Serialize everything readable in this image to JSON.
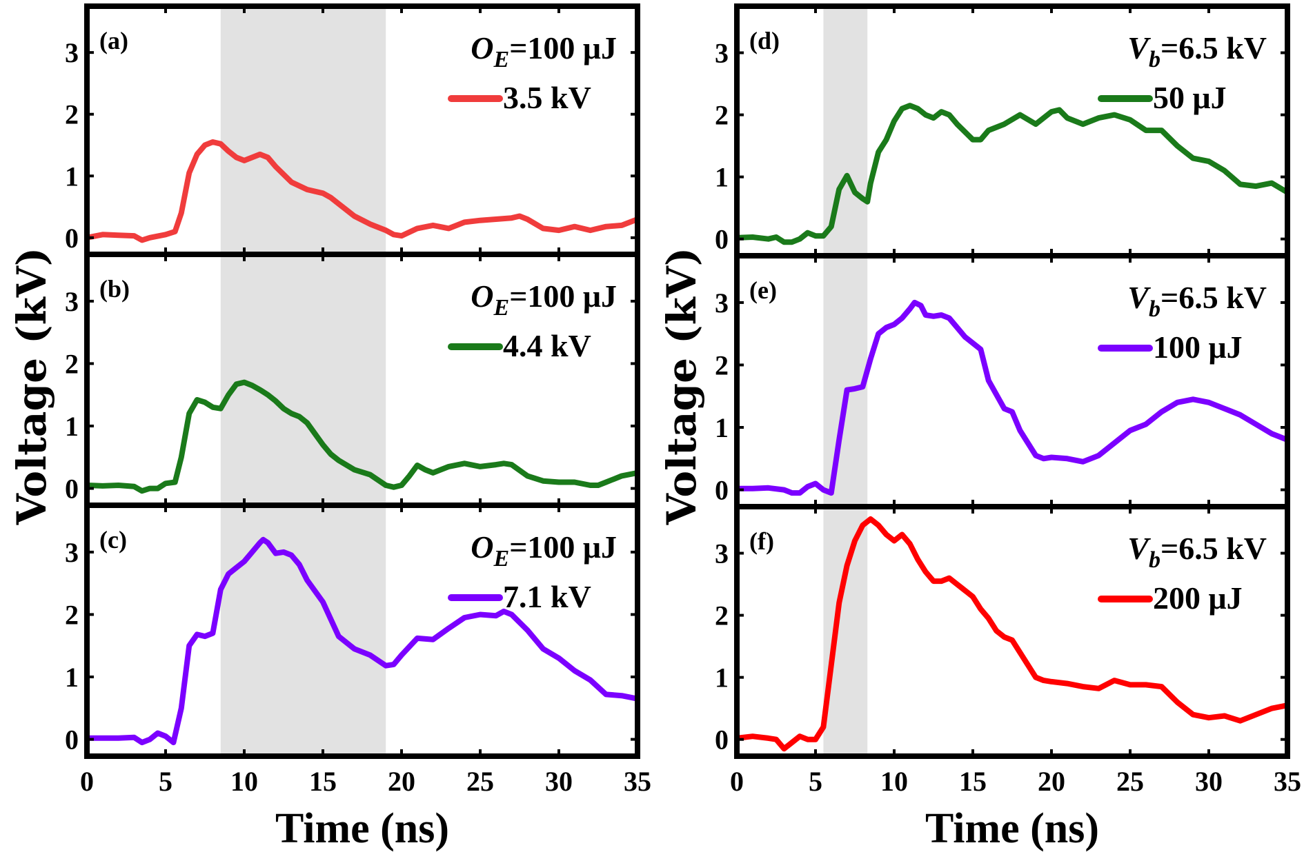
{
  "chart_data": [
    {
      "type": "line",
      "panel": "(a)",
      "annotation": {
        "symbol": "O",
        "subscript": "E",
        "rest": "=100 μJ"
      },
      "xlabel": "Time (ns)",
      "ylabel": "Voltage (kV)",
      "xlim": [
        0,
        35
      ],
      "ylim": [
        -0.27,
        3.75
      ],
      "xticks": [
        "0",
        "5",
        "10",
        "15",
        "20",
        "25",
        "30",
        "35"
      ],
      "yticks": [
        "0",
        "1",
        "2",
        "3"
      ],
      "shaded_region": [
        8.5,
        19
      ],
      "series": [
        {
          "name": "3.5 kV",
          "color": "#f03c3c",
          "x": [
            0,
            1,
            2,
            3,
            3.5,
            4,
            5,
            5.6,
            6,
            6.5,
            7,
            7.5,
            8,
            8.5,
            9,
            9.5,
            10,
            10.5,
            11,
            11.5,
            12,
            13,
            14,
            15,
            15.5,
            16,
            17,
            18,
            19,
            19.5,
            20,
            21,
            22,
            23,
            24,
            25,
            26,
            27,
            27.5,
            28,
            29,
            30,
            31,
            32,
            33,
            34,
            35
          ],
          "y": [
            0,
            0.05,
            0.04,
            0.03,
            -0.04,
            0,
            0.05,
            0.1,
            0.4,
            1.05,
            1.35,
            1.5,
            1.55,
            1.52,
            1.4,
            1.3,
            1.25,
            1.3,
            1.35,
            1.3,
            1.15,
            0.9,
            0.78,
            0.72,
            0.65,
            0.55,
            0.35,
            0.22,
            0.12,
            0.05,
            0.03,
            0.15,
            0.2,
            0.15,
            0.25,
            0.28,
            0.3,
            0.32,
            0.35,
            0.3,
            0.15,
            0.12,
            0.18,
            0.12,
            0.18,
            0.2,
            0.3
          ]
        }
      ]
    },
    {
      "type": "line",
      "panel": "(b)",
      "annotation": {
        "symbol": "O",
        "subscript": "E",
        "rest": "=100 μJ"
      },
      "xlabel": "Time (ns)",
      "ylabel": "Voltage (kV)",
      "xlim": [
        0,
        35
      ],
      "ylim": [
        -0.27,
        3.75
      ],
      "xticks": [
        "0",
        "5",
        "10",
        "15",
        "20",
        "25",
        "30",
        "35"
      ],
      "yticks": [
        "0",
        "1",
        "2",
        "3"
      ],
      "shaded_region": [
        8.5,
        19
      ],
      "series": [
        {
          "name": "4.4 kV",
          "color": "#1a7a1a",
          "x": [
            0,
            1,
            2,
            3,
            3.5,
            4,
            4.5,
            5,
            5.6,
            6,
            6.5,
            7,
            7.5,
            8,
            8.5,
            9,
            9.5,
            10,
            10.5,
            11,
            11.5,
            12,
            12.5,
            13,
            13.5,
            14,
            15,
            15.5,
            16,
            17,
            18,
            19,
            19.5,
            20,
            20.5,
            21,
            21.5,
            22,
            23,
            24,
            25,
            26,
            26.5,
            27,
            28,
            29,
            30,
            31,
            32,
            32.5,
            33,
            34,
            35
          ],
          "y": [
            0.05,
            0.04,
            0.05,
            0.03,
            -0.04,
            0,
            0,
            0.08,
            0.1,
            0.5,
            1.2,
            1.42,
            1.38,
            1.3,
            1.28,
            1.5,
            1.67,
            1.7,
            1.65,
            1.58,
            1.5,
            1.4,
            1.28,
            1.2,
            1.15,
            1.05,
            0.7,
            0.55,
            0.45,
            0.3,
            0.22,
            0.05,
            0.02,
            0.05,
            0.2,
            0.37,
            0.3,
            0.25,
            0.35,
            0.4,
            0.35,
            0.38,
            0.4,
            0.38,
            0.2,
            0.12,
            0.1,
            0.1,
            0.05,
            0.05,
            0.1,
            0.2,
            0.25
          ]
        }
      ]
    },
    {
      "type": "line",
      "panel": "(c)",
      "annotation": {
        "symbol": "O",
        "subscript": "E",
        "rest": "=100 μJ"
      },
      "xlabel": "Time (ns)",
      "ylabel": "Voltage (kV)",
      "xlim": [
        0,
        35
      ],
      "ylim": [
        -0.27,
        3.75
      ],
      "xticks": [
        "0",
        "5",
        "10",
        "15",
        "20",
        "25",
        "30",
        "35"
      ],
      "yticks": [
        "0",
        "1",
        "2",
        "3"
      ],
      "shaded_region": [
        8.5,
        19
      ],
      "series": [
        {
          "name": "7.1 kV",
          "color": "#7b00ff",
          "x": [
            0,
            1,
            2,
            3,
            3.5,
            4,
            4.5,
            5,
            5.5,
            6,
            6.5,
            7,
            7.5,
            8,
            8.5,
            9,
            9.5,
            10,
            10.5,
            11,
            11.2,
            11.5,
            12,
            12.5,
            13,
            13.5,
            14,
            15,
            16,
            17,
            18,
            19,
            19.5,
            20,
            21,
            22,
            23,
            24,
            25,
            26,
            26.5,
            27,
            28,
            29,
            30,
            31,
            32,
            33,
            34,
            35
          ],
          "y": [
            0.02,
            0.02,
            0.02,
            0.03,
            -0.05,
            0,
            0.1,
            0.05,
            -0.05,
            0.5,
            1.5,
            1.68,
            1.65,
            1.7,
            2.4,
            2.65,
            2.75,
            2.85,
            3.0,
            3.15,
            3.2,
            3.15,
            2.98,
            3.0,
            2.95,
            2.8,
            2.55,
            2.2,
            1.65,
            1.45,
            1.35,
            1.18,
            1.2,
            1.35,
            1.62,
            1.6,
            1.78,
            1.95,
            2.0,
            1.98,
            2.05,
            2.0,
            1.75,
            1.45,
            1.3,
            1.1,
            0.95,
            0.72,
            0.7,
            0.65
          ]
        }
      ]
    },
    {
      "type": "line",
      "panel": "(d)",
      "annotation": {
        "symbol": "V",
        "subscript": "b",
        "rest": "=6.5 kV"
      },
      "xlabel": "Time (ns)",
      "ylabel": "Voltage (kV)",
      "xlim": [
        0,
        35
      ],
      "ylim": [
        -0.27,
        3.75
      ],
      "xticks": [
        "0",
        "5",
        "10",
        "15",
        "20",
        "25",
        "30",
        "35"
      ],
      "yticks": [
        "0",
        "1",
        "2",
        "3"
      ],
      "shaded_region": [
        5.5,
        8.3
      ],
      "series": [
        {
          "name": "50 μJ",
          "color": "#1a7a1a",
          "x": [
            0,
            1,
            2,
            2.5,
            3,
            3.5,
            4,
            4.5,
            5,
            5.5,
            6,
            6.5,
            7,
            7.5,
            8,
            8.3,
            8.5,
            9,
            9.5,
            10,
            10.5,
            11,
            11.5,
            12,
            12.5,
            13,
            13.5,
            14,
            15,
            15.5,
            16,
            17,
            18,
            19,
            20,
            20.5,
            21,
            22,
            23,
            24,
            25,
            26,
            26.5,
            27,
            28,
            29,
            30,
            31,
            32,
            33,
            34,
            35
          ],
          "y": [
            0.02,
            0.03,
            0,
            0.03,
            -0.05,
            -0.05,
            0,
            0.1,
            0.05,
            0.05,
            0.2,
            0.8,
            1.02,
            0.75,
            0.65,
            0.6,
            0.9,
            1.4,
            1.6,
            1.9,
            2.1,
            2.15,
            2.1,
            2.0,
            1.95,
            2.05,
            2.0,
            1.85,
            1.6,
            1.6,
            1.75,
            1.85,
            2.0,
            1.85,
            2.05,
            2.08,
            1.95,
            1.85,
            1.95,
            2.0,
            1.92,
            1.75,
            1.75,
            1.75,
            1.5,
            1.3,
            1.25,
            1.1,
            0.88,
            0.85,
            0.9,
            0.75
          ]
        }
      ]
    },
    {
      "type": "line",
      "panel": "(e)",
      "annotation": {
        "symbol": "V",
        "subscript": "b",
        "rest": "=6.5 kV"
      },
      "xlabel": "Time (ns)",
      "ylabel": "Voltage (kV)",
      "xlim": [
        0,
        35
      ],
      "ylim": [
        -0.27,
        3.75
      ],
      "xticks": [
        "0",
        "5",
        "10",
        "15",
        "20",
        "25",
        "30",
        "35"
      ],
      "yticks": [
        "0",
        "1",
        "2",
        "3"
      ],
      "shaded_region": [
        5.5,
        8.3
      ],
      "series": [
        {
          "name": "100 μJ",
          "color": "#7b00ff",
          "x": [
            0,
            1,
            2,
            3,
            3.5,
            4,
            4.5,
            5,
            5.5,
            6,
            6.5,
            7,
            7.5,
            8,
            8.5,
            9,
            9.5,
            10,
            10.5,
            11,
            11.3,
            11.7,
            12,
            12.5,
            13,
            13.5,
            14,
            14.5,
            15,
            15.5,
            16,
            17,
            17.5,
            18,
            19,
            19.5,
            20,
            21,
            22,
            23,
            24,
            25,
            26,
            27,
            28,
            29,
            30,
            31,
            32,
            33,
            34,
            35
          ],
          "y": [
            0.02,
            0.02,
            0.03,
            0,
            -0.05,
            -0.05,
            0.05,
            0.1,
            0,
            -0.05,
            0.8,
            1.6,
            1.62,
            1.65,
            2.1,
            2.5,
            2.6,
            2.65,
            2.75,
            2.9,
            3.0,
            2.95,
            2.8,
            2.78,
            2.8,
            2.75,
            2.6,
            2.45,
            2.35,
            2.25,
            1.75,
            1.3,
            1.25,
            0.95,
            0.55,
            0.5,
            0.52,
            0.5,
            0.45,
            0.55,
            0.75,
            0.95,
            1.05,
            1.25,
            1.4,
            1.45,
            1.4,
            1.3,
            1.2,
            1.05,
            0.9,
            0.8
          ]
        }
      ]
    },
    {
      "type": "line",
      "panel": "(f)",
      "annotation": {
        "symbol": "V",
        "subscript": "b",
        "rest": "=6.5 kV"
      },
      "xlabel": "Time (ns)",
      "ylabel": "Voltage (kV)",
      "xlim": [
        0,
        35
      ],
      "ylim": [
        -0.27,
        3.75
      ],
      "xticks": [
        "0",
        "5",
        "10",
        "15",
        "20",
        "25",
        "30",
        "35"
      ],
      "yticks": [
        "0",
        "1",
        "2",
        "3"
      ],
      "shaded_region": [
        5.5,
        8.3
      ],
      "series": [
        {
          "name": "200 μJ",
          "color": "#ff0000",
          "x": [
            0,
            1,
            2,
            2.5,
            3,
            3.5,
            4,
            4.5,
            5,
            5.5,
            6,
            6.5,
            7,
            7.5,
            8,
            8.5,
            9,
            9.5,
            10,
            10.5,
            11,
            11.5,
            12,
            12.5,
            13,
            13.5,
            14,
            15,
            15.5,
            16,
            16.5,
            17,
            17.5,
            18,
            19,
            19.5,
            20,
            21,
            22,
            23,
            24,
            25,
            26,
            27,
            28,
            29,
            30,
            31,
            32,
            33,
            34,
            35
          ],
          "y": [
            0.02,
            0.05,
            0.02,
            0,
            -0.15,
            -0.05,
            0.05,
            0,
            0,
            0.2,
            1.2,
            2.2,
            2.8,
            3.2,
            3.45,
            3.55,
            3.45,
            3.3,
            3.2,
            3.3,
            3.15,
            2.9,
            2.7,
            2.55,
            2.55,
            2.6,
            2.5,
            2.3,
            2.1,
            1.95,
            1.75,
            1.65,
            1.6,
            1.4,
            1.0,
            0.95,
            0.93,
            0.9,
            0.85,
            0.82,
            0.95,
            0.88,
            0.88,
            0.85,
            0.6,
            0.4,
            0.35,
            0.38,
            0.3,
            0.4,
            0.5,
            0.55
          ]
        }
      ]
    }
  ],
  "figure": {
    "ylabel_left": "Voltage (kV)",
    "ylabel_right": "Voltage (kV)",
    "xlabel_left": "Time (ns)",
    "xlabel_right": "Time (ns)"
  }
}
